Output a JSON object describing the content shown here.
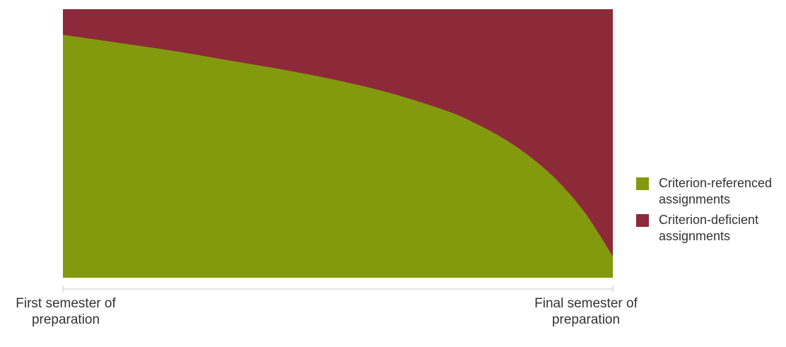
{
  "chart_data": {
    "type": "area",
    "stacked": true,
    "percent_stacked": true,
    "x": [
      0,
      0.1,
      0.2,
      0.3,
      0.4,
      0.5,
      0.6,
      0.7,
      0.75,
      0.8,
      0.85,
      0.9,
      0.95,
      1.0
    ],
    "series": [
      {
        "name": "Criterion-referenced assignments",
        "color": "#839a0e",
        "values": [
          90.5,
          87.5,
          84.5,
          81,
          77.5,
          73.5,
          68.5,
          62,
          57.5,
          52,
          45,
          36,
          24,
          8
        ]
      },
      {
        "name": "Criterion-deficient assignments",
        "color": "#8d2a3a",
        "values": [
          9.5,
          12.5,
          15.5,
          19,
          22.5,
          26.5,
          31.5,
          38,
          42.5,
          48,
          55,
          64,
          76,
          92
        ]
      }
    ],
    "xaxis_labels": [
      {
        "position": 0,
        "text": "First semester of preparation"
      },
      {
        "position": 1,
        "text": "Final semester of preparation"
      }
    ],
    "ylim": [
      0,
      100
    ],
    "grid": false,
    "legend_position": "right",
    "title": "",
    "xlabel": "",
    "ylabel": ""
  },
  "colors": {
    "axis_line": "#c8c8c8",
    "text": "#333333"
  }
}
